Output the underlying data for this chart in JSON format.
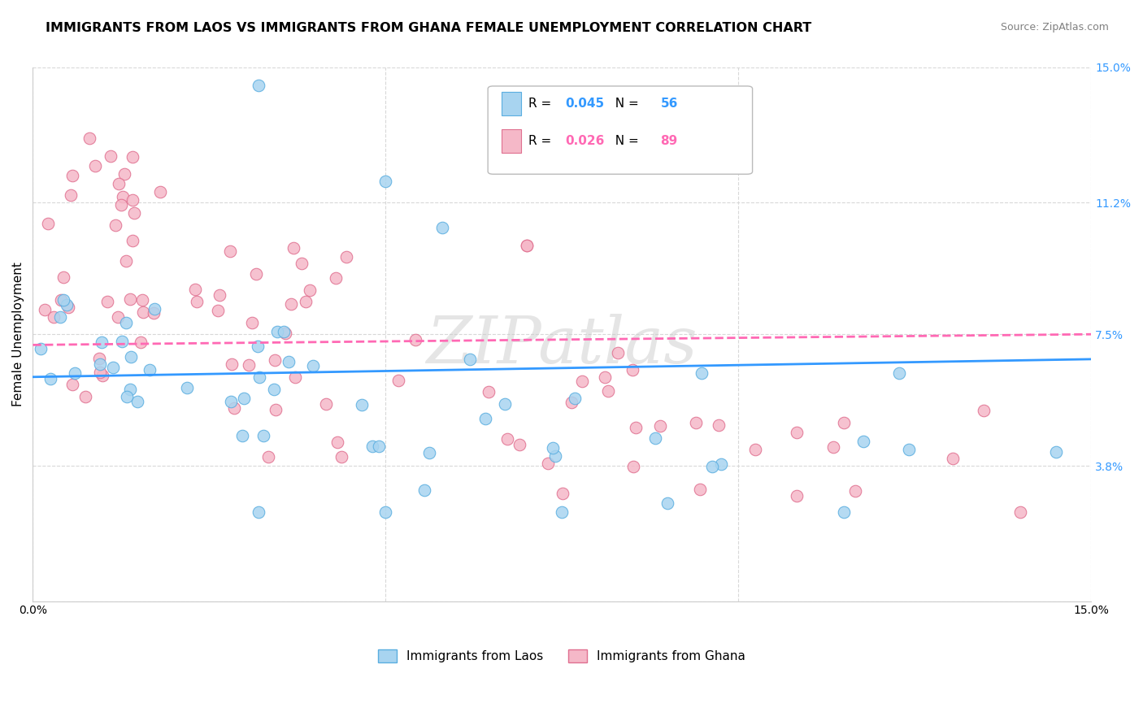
{
  "title": "IMMIGRANTS FROM LAOS VS IMMIGRANTS FROM GHANA FEMALE UNEMPLOYMENT CORRELATION CHART",
  "source_text": "Source: ZipAtlas.com",
  "ylabel": "Female Unemployment",
  "xlim": [
    0,
    0.15
  ],
  "ylim": [
    0,
    0.15
  ],
  "laos_color": "#a8d4f0",
  "ghana_color": "#f5b8c8",
  "laos_edge_color": "#5aaee0",
  "ghana_edge_color": "#e07090",
  "laos_R": 0.045,
  "laos_N": 56,
  "ghana_R": 0.026,
  "ghana_N": 89,
  "laos_trend_color": "#3399ff",
  "ghana_trend_color": "#ff69b4",
  "watermark": "ZIPatlas",
  "background_color": "#ffffff",
  "grid_color": "#d8d8d8",
  "title_fontsize": 11.5,
  "axis_label_fontsize": 11,
  "tick_fontsize": 10,
  "legend_fontsize": 11,
  "source_fontsize": 9,
  "right_tick_color": "#3399ff"
}
